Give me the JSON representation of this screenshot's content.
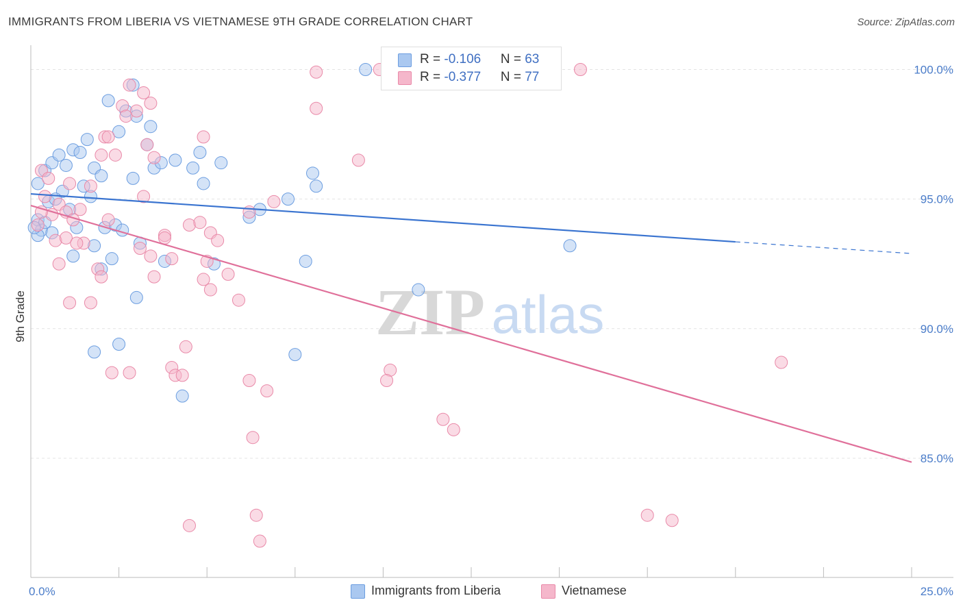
{
  "header": {
    "title": "IMMIGRANTS FROM LIBERIA VS VIETNAMESE 9TH GRADE CORRELATION CHART",
    "source": "Source: ZipAtlas.com"
  },
  "watermark": {
    "zip": "ZIP",
    "atlas": "atlas"
  },
  "legend": {
    "rows": [
      {
        "r_label": "R = ",
        "r_value": "-0.106",
        "n_label": "N = ",
        "n_value": "63",
        "color": "#aac8f0"
      },
      {
        "r_label": "R = ",
        "r_value": "-0.377",
        "n_label": "N = ",
        "n_value": "77",
        "color": "#f5b7cb"
      }
    ]
  },
  "bottom_legend": {
    "items": [
      {
        "label": "Immigrants from Liberia",
        "color": "#aac8f0"
      },
      {
        "label": "Vietnamese",
        "color": "#f5b7cb"
      }
    ]
  },
  "chart_data": {
    "type": "scatter",
    "ylabel": "9th Grade",
    "xlim": [
      0,
      25
    ],
    "ylim": [
      80.4,
      100.7
    ],
    "y_ticks": [
      {
        "value": 100,
        "label": "100.0%"
      },
      {
        "value": 95,
        "label": "95.0%"
      },
      {
        "value": 90,
        "label": "90.0%"
      },
      {
        "value": 85,
        "label": "85.0%"
      }
    ],
    "x_tick_labels": {
      "left": "0.0%",
      "right": "25.0%"
    },
    "grid": true,
    "series": [
      {
        "name": "Immigrants from Liberia",
        "color": "#aac8f0",
        "stroke": "#6b9de0",
        "trend": {
          "x0": 0,
          "y0": 95.2,
          "x1": 20,
          "y1": 93.35,
          "dash_to_x": 25,
          "dash_to_y": 92.9,
          "color": "#3a74d0"
        },
        "points": [
          [
            0.2,
            95.6
          ],
          [
            0.4,
            96.1
          ],
          [
            0.6,
            96.4
          ],
          [
            0.8,
            96.7
          ],
          [
            1.0,
            96.3
          ],
          [
            1.2,
            96.9
          ],
          [
            1.4,
            96.8
          ],
          [
            1.6,
            97.3
          ],
          [
            1.8,
            96.2
          ],
          [
            2.0,
            95.9
          ],
          [
            2.2,
            98.8
          ],
          [
            2.5,
            97.6
          ],
          [
            2.7,
            98.4
          ],
          [
            2.9,
            99.4
          ],
          [
            3.0,
            98.2
          ],
          [
            3.3,
            97.1
          ],
          [
            3.4,
            97.8
          ],
          [
            3.5,
            96.2
          ],
          [
            3.7,
            96.4
          ],
          [
            4.1,
            96.5
          ],
          [
            4.6,
            96.2
          ],
          [
            4.8,
            96.8
          ],
          [
            4.9,
            95.6
          ],
          [
            5.4,
            96.4
          ],
          [
            0.2,
            94.2
          ],
          [
            0.3,
            93.8
          ],
          [
            0.5,
            94.9
          ],
          [
            0.6,
            93.7
          ],
          [
            0.9,
            95.3
          ],
          [
            1.1,
            94.6
          ],
          [
            1.3,
            93.9
          ],
          [
            1.5,
            95.5
          ],
          [
            1.7,
            95.1
          ],
          [
            1.8,
            93.2
          ],
          [
            2.1,
            93.9
          ],
          [
            2.3,
            92.7
          ],
          [
            2.4,
            94.0
          ],
          [
            2.6,
            93.8
          ],
          [
            2.9,
            95.8
          ],
          [
            3.1,
            93.3
          ],
          [
            0.2,
            93.6
          ],
          [
            0.4,
            94.1
          ],
          [
            0.7,
            95.0
          ],
          [
            1.2,
            92.8
          ],
          [
            2.0,
            92.3
          ],
          [
            3.0,
            91.2
          ],
          [
            2.5,
            89.4
          ],
          [
            1.8,
            89.1
          ],
          [
            3.8,
            92.6
          ],
          [
            4.3,
            87.4
          ],
          [
            5.2,
            92.5
          ],
          [
            6.2,
            94.3
          ],
          [
            6.5,
            94.6
          ],
          [
            7.3,
            95.0
          ],
          [
            7.5,
            89.0
          ],
          [
            7.8,
            92.6
          ],
          [
            8.0,
            96.0
          ],
          [
            8.1,
            95.5
          ],
          [
            9.5,
            100.0
          ],
          [
            11.0,
            91.5
          ],
          [
            15.3,
            93.2
          ],
          [
            10.2,
            99.9
          ],
          [
            0.1,
            93.9
          ]
        ]
      },
      {
        "name": "Vietnamese",
        "color": "#f5b7cb",
        "stroke": "#e989a8",
        "trend": {
          "x0": 0,
          "y0": 94.75,
          "x1": 25,
          "y1": 84.85,
          "color": "#e0709a"
        },
        "points": [
          [
            2.8,
            99.4
          ],
          [
            3.2,
            99.1
          ],
          [
            2.6,
            98.6
          ],
          [
            3.4,
            98.7
          ],
          [
            3.0,
            98.4
          ],
          [
            2.7,
            98.2
          ],
          [
            2.1,
            97.4
          ],
          [
            3.3,
            97.1
          ],
          [
            2.4,
            96.7
          ],
          [
            2.0,
            96.7
          ],
          [
            3.5,
            96.6
          ],
          [
            0.3,
            96.1
          ],
          [
            0.5,
            95.8
          ],
          [
            1.1,
            95.6
          ],
          [
            1.7,
            95.5
          ],
          [
            3.2,
            95.1
          ],
          [
            0.4,
            95.1
          ],
          [
            0.8,
            94.8
          ],
          [
            1.4,
            94.6
          ],
          [
            0.6,
            94.4
          ],
          [
            1.0,
            94.5
          ],
          [
            1.2,
            94.2
          ],
          [
            0.2,
            94.0
          ],
          [
            2.2,
            94.2
          ],
          [
            4.5,
            94.0
          ],
          [
            4.8,
            94.1
          ],
          [
            5.1,
            93.7
          ],
          [
            0.7,
            93.4
          ],
          [
            1.0,
            93.5
          ],
          [
            1.5,
            93.3
          ],
          [
            3.1,
            93.1
          ],
          [
            3.4,
            92.8
          ],
          [
            3.8,
            93.6
          ],
          [
            4.0,
            92.7
          ],
          [
            5.3,
            93.4
          ],
          [
            0.8,
            92.5
          ],
          [
            1.9,
            92.3
          ],
          [
            2.0,
            92.0
          ],
          [
            3.5,
            92.0
          ],
          [
            4.9,
            91.9
          ],
          [
            5.1,
            91.5
          ],
          [
            5.6,
            92.1
          ],
          [
            5.9,
            91.1
          ],
          [
            1.1,
            91.0
          ],
          [
            1.7,
            91.0
          ],
          [
            4.4,
            89.3
          ],
          [
            4.0,
            88.5
          ],
          [
            4.1,
            88.2
          ],
          [
            4.3,
            88.2
          ],
          [
            2.3,
            88.3
          ],
          [
            2.8,
            88.3
          ],
          [
            6.2,
            88.0
          ],
          [
            6.7,
            87.6
          ],
          [
            10.2,
            88.4
          ],
          [
            10.1,
            88.0
          ],
          [
            11.7,
            86.5
          ],
          [
            12.0,
            86.1
          ],
          [
            6.3,
            85.8
          ],
          [
            21.3,
            88.7
          ],
          [
            4.5,
            82.4
          ],
          [
            6.4,
            82.8
          ],
          [
            6.5,
            81.8
          ],
          [
            17.5,
            82.8
          ],
          [
            18.2,
            82.6
          ],
          [
            8.1,
            99.9
          ],
          [
            9.9,
            100.0
          ],
          [
            15.6,
            100.0
          ],
          [
            8.1,
            98.5
          ],
          [
            9.3,
            96.5
          ],
          [
            4.9,
            97.4
          ],
          [
            6.2,
            94.5
          ],
          [
            6.9,
            94.9
          ],
          [
            5.0,
            92.6
          ],
          [
            3.8,
            93.5
          ],
          [
            1.3,
            93.3
          ],
          [
            0.3,
            94.5
          ],
          [
            2.2,
            97.4
          ]
        ]
      }
    ]
  }
}
